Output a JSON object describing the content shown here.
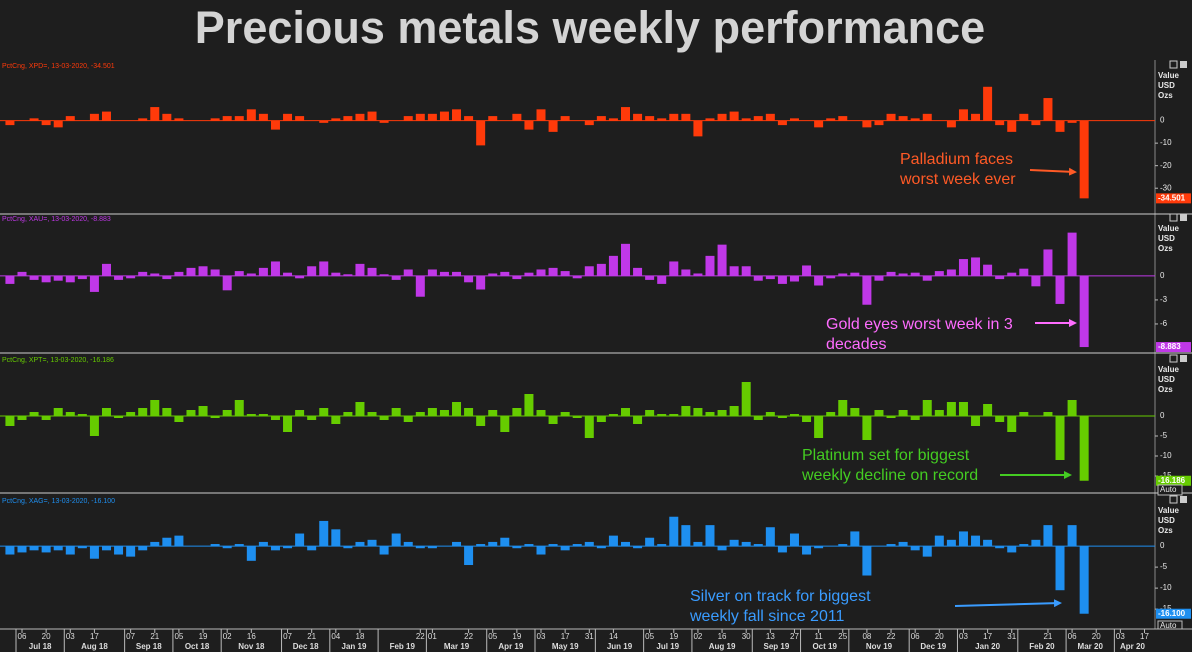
{
  "title": "Precious metals weekly performance",
  "x_axis": {
    "categories": [
      null,
      "06",
      null,
      "20",
      null,
      "03",
      null,
      "17",
      null,
      null,
      "07",
      null,
      "21",
      null,
      "05",
      null,
      "19",
      null,
      "02",
      null,
      "16",
      null,
      null,
      "07",
      null,
      "21",
      null,
      "04",
      null,
      "18",
      null,
      null,
      null,
      null,
      "22",
      "01",
      null,
      null,
      "22",
      null,
      "05",
      null,
      "19",
      null,
      "03",
      null,
      "17",
      null,
      "31",
      null,
      "14",
      null,
      null,
      "05",
      null,
      "19",
      null,
      "02",
      null,
      "16",
      null,
      "30",
      null,
      "13",
      null,
      "27",
      null,
      "11",
      null,
      "25",
      null,
      "08",
      null,
      "22",
      null,
      "06",
      null,
      "20",
      null,
      "03",
      null,
      "17",
      null,
      "31",
      null,
      null,
      "21",
      null,
      "06",
      null,
      "20",
      null,
      "03",
      null,
      "17"
    ],
    "months": [
      {
        "label": "Jul 18",
        "start": 1
      },
      {
        "label": "Aug 18",
        "start": 5
      },
      {
        "label": "Sep 18",
        "start": 10
      },
      {
        "label": "Oct 18",
        "start": 14
      },
      {
        "label": "Nov 18",
        "start": 18
      },
      {
        "label": "Dec 18",
        "start": 23
      },
      {
        "label": "Jan 19",
        "start": 27
      },
      {
        "label": "Feb 19",
        "start": 31
      },
      {
        "label": "Mar 19",
        "start": 35
      },
      {
        "label": "Apr 19",
        "start": 40
      },
      {
        "label": "May 19",
        "start": 44
      },
      {
        "label": "Jun 19",
        "start": 49
      },
      {
        "label": "Jul 19",
        "start": 53
      },
      {
        "label": "Aug 19",
        "start": 57
      },
      {
        "label": "Sep 19",
        "start": 62
      },
      {
        "label": "Oct 19",
        "start": 66
      },
      {
        "label": "Nov 19",
        "start": 70
      },
      {
        "label": "Dec 19",
        "start": 75
      },
      {
        "label": "Jan 20",
        "start": 79
      },
      {
        "label": "Feb 20",
        "start": 84
      },
      {
        "label": "Mar 20",
        "start": 88
      },
      {
        "label": "Apr 20",
        "start": 92
      }
    ]
  },
  "axis_units": [
    "Value",
    "USD",
    "Ozs"
  ],
  "axis_mode": "Auto",
  "chart_data": [
    {
      "type": "bar",
      "legend": "PctCng, XPD=, 13-03-2020, -34.501",
      "color": "#ff3a0a",
      "annotation_color": "#ff5a26",
      "annotation": [
        "Palladium faces",
        "worst week ever"
      ],
      "last_value_label": "-34.501",
      "ylim": [
        -41,
        26
      ],
      "yticks": [
        0,
        -10,
        -20,
        -30
      ],
      "values": [
        -2,
        0,
        1,
        -2,
        -3,
        2,
        0,
        3,
        4,
        0,
        0,
        1,
        6,
        3,
        1,
        0,
        0,
        1,
        2,
        2,
        5,
        3,
        -4,
        3,
        2,
        0,
        -1,
        1,
        2,
        3,
        4,
        -1,
        0,
        2,
        3,
        3,
        4,
        5,
        2,
        -11,
        2,
        0,
        3,
        -4,
        5,
        -5,
        2,
        0,
        -2,
        2,
        1,
        6,
        3,
        2,
        1,
        3,
        3,
        -7,
        1,
        3,
        4,
        1,
        2,
        3,
        -2,
        1,
        0,
        -3,
        1,
        2,
        0,
        -3,
        -2,
        3,
        2,
        1,
        3,
        0,
        -3,
        5,
        3,
        15,
        -2,
        -5,
        3,
        -2,
        10,
        -5,
        -1,
        -34.501
      ]
    },
    {
      "type": "bar",
      "legend": "PctCng, XAU=, 13-03-2020, -8.883",
      "color": "#c038e8",
      "annotation_color": "#ff6cff",
      "annotation": [
        "Gold eyes worst week in 3",
        "decades"
      ],
      "last_value_label": "-8.883",
      "ylim": [
        -9.5,
        7.6
      ],
      "yticks": [
        0,
        -3,
        -6
      ],
      "values": [
        -1,
        0.5,
        -0.5,
        -0.8,
        -0.6,
        -0.8,
        -0.4,
        -2,
        1.5,
        -0.5,
        -0.3,
        0.5,
        0.3,
        -0.4,
        0.5,
        1,
        1.2,
        0.8,
        -1.8,
        0.6,
        0.3,
        1,
        1.8,
        0.4,
        -0.3,
        1.2,
        1.8,
        0.4,
        0.2,
        1.5,
        1,
        0.2,
        -0.5,
        0.8,
        -2.6,
        0.8,
        0.5,
        0.5,
        -0.8,
        -1.7,
        0.3,
        0.5,
        -0.4,
        0.4,
        0.8,
        1,
        0.6,
        -0.3,
        1.2,
        1.5,
        2.5,
        4,
        1,
        -0.5,
        -1,
        1.8,
        0.8,
        0.3,
        2.5,
        3.9,
        1.2,
        1.2,
        -0.6,
        -0.4,
        -1,
        -0.7,
        1.3,
        -1.2,
        -0.3,
        0.3,
        0.4,
        -3.6,
        -0.6,
        0.5,
        0.3,
        0.4,
        -0.6,
        0.6,
        0.8,
        2.1,
        2.3,
        1.4,
        -0.4,
        0.4,
        0.9,
        -1.3,
        3.3,
        -3.5,
        5.4,
        -8.883
      ]
    },
    {
      "type": "bar",
      "legend": "PctCng, XPT=, 13-03-2020, -16.186",
      "color": "#66cc00",
      "annotation_color": "#44cc22",
      "annotation": [
        "Platinum set for biggest",
        "weekly decline on record"
      ],
      "last_value_label": "-16.186",
      "ylim": [
        -19,
        15
      ],
      "yticks": [
        0,
        -5,
        -10,
        -15
      ],
      "values": [
        -2.5,
        -1,
        1,
        -1,
        2,
        1,
        0.5,
        -5,
        2,
        -0.5,
        1,
        2,
        4,
        2,
        -1.5,
        1.5,
        2.5,
        -0.5,
        1.5,
        4,
        0.5,
        0.5,
        -1,
        -4,
        1.5,
        -1,
        2,
        -2,
        1,
        3.5,
        1,
        -1,
        2,
        -1.5,
        1,
        2,
        1.5,
        3.5,
        2,
        -2.5,
        1.5,
        -4,
        2,
        5.5,
        1.5,
        -2,
        1,
        -0.5,
        -5.5,
        -1.5,
        0.5,
        2,
        -2,
        1.5,
        0.5,
        0.5,
        2.5,
        2,
        1,
        1.5,
        2.5,
        8.5,
        -1,
        1,
        -0.5,
        0.5,
        -1.5,
        -5.5,
        1,
        4,
        2,
        -6,
        1.5,
        -0.5,
        1.5,
        -1,
        4,
        1.5,
        3.5,
        3.5,
        -2.5,
        3,
        -1.5,
        -4,
        1,
        0,
        1,
        -11,
        4,
        -16.186
      ]
    },
    {
      "type": "bar",
      "legend": "PctCng, XAG=, 13-03-2020, -16.100",
      "color": "#1e8ff0",
      "annotation_color": "#3a9cff",
      "annotation": [
        "Silver on track for biggest",
        "weekly fall since 2011"
      ],
      "last_value_label": "-16.100",
      "ylim": [
        -19.5,
        11.7
      ],
      "yticks": [
        0,
        -5,
        -10,
        -15
      ],
      "values": [
        -2,
        -1.5,
        -1,
        -1.5,
        -1,
        -2,
        -0.5,
        -3,
        -1,
        -2,
        -2.5,
        -1,
        1,
        2,
        2.5,
        0,
        0,
        0.5,
        -0.5,
        0.5,
        -3.5,
        1,
        -1,
        -0.5,
        3,
        -1,
        6,
        4,
        -0.5,
        1,
        1.5,
        -2,
        3,
        1,
        -0.5,
        -0.5,
        0,
        1,
        -4.5,
        0.5,
        1,
        2,
        -0.5,
        0.5,
        -2,
        0.5,
        -1,
        0.5,
        1,
        -0.5,
        2.5,
        1,
        -0.5,
        2,
        0.5,
        7,
        5,
        1,
        5,
        -1,
        1.5,
        1,
        0.5,
        4.5,
        -1.5,
        3,
        -2,
        -0.5,
        0,
        0.5,
        3.5,
        -7,
        0,
        0.5,
        1,
        -1,
        -2.5,
        2.5,
        1.5,
        3.5,
        2.5,
        1.5,
        -0.5,
        -1.5,
        0.5,
        1.5,
        5,
        -10.5,
        5,
        -16.1
      ]
    }
  ]
}
